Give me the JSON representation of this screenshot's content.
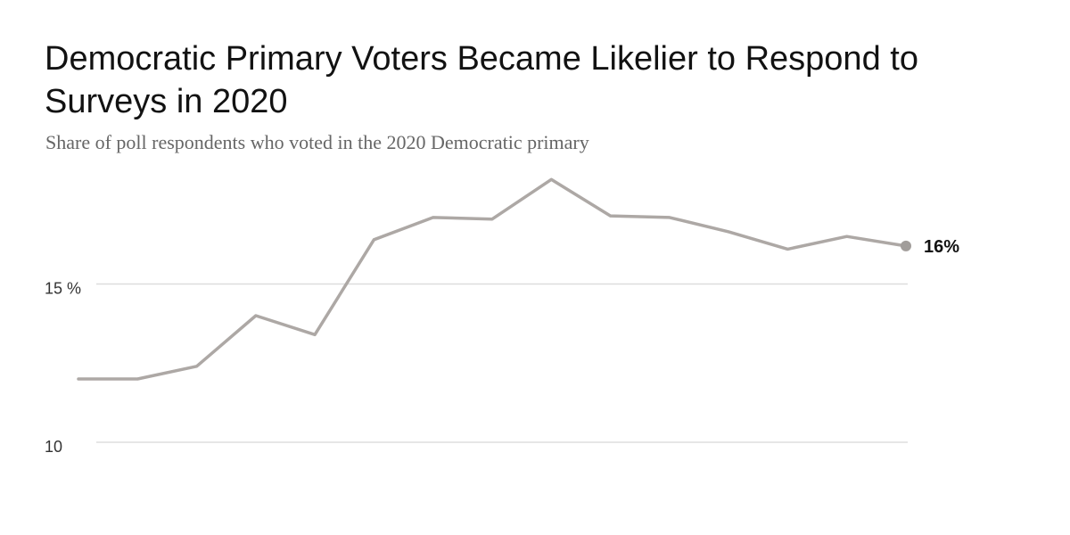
{
  "title": "Democratic Primary Voters Became Likelier to Respond to Surveys in 2020",
  "subtitle": "Share of poll respondents who voted in the 2020 Democratic primary",
  "colors": {
    "line": "#ada8a5",
    "end_dot": "#a19d9a",
    "gridline": "#dddddd"
  },
  "chart_data": {
    "type": "line",
    "title": "Democratic Primary Voters Became Likelier to Respond to Surveys in 2020",
    "subtitle": "Share of poll respondents who voted in the 2020 Democratic primary",
    "xlabel": "",
    "ylabel": "",
    "ylim": [
      9.1,
      18.9
    ],
    "grid": true,
    "y_ticks": [
      {
        "value": 10,
        "label": "10"
      },
      {
        "value": 15,
        "label": "15 %"
      }
    ],
    "end_label": "16%",
    "series": [
      {
        "values": [
          12.0,
          12.0,
          12.4,
          14.0,
          13.4,
          16.4,
          17.1,
          17.05,
          18.3,
          17.15,
          17.1,
          16.65,
          16.1,
          16.5,
          16.2
        ]
      }
    ]
  }
}
